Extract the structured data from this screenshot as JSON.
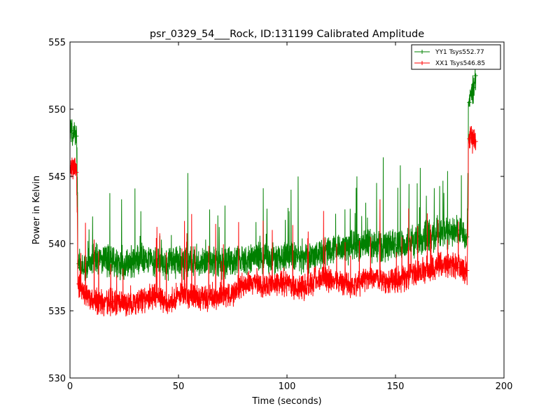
{
  "chart_data": {
    "type": "line",
    "title": "psr_0329_54___Rock, ID:131199 Calibrated Amplitude",
    "xlabel": "Time (seconds)",
    "ylabel": "Power in Kelvin",
    "xlim": [
      0,
      200
    ],
    "ylim": [
      530,
      555
    ],
    "x_ticks": [
      "0",
      "50",
      "100",
      "150",
      "200"
    ],
    "y_ticks": [
      "530",
      "535",
      "540",
      "545",
      "550",
      "555"
    ],
    "grid": false,
    "legend_position": "top-right",
    "marker": "plus",
    "series": [
      {
        "name": "YY1 Tsys552.77",
        "color": "#008000",
        "x": [
          0,
          1,
          2,
          3,
          4,
          5,
          8,
          10,
          15,
          20,
          25,
          30,
          35,
          40,
          45,
          50,
          55,
          60,
          65,
          70,
          75,
          80,
          85,
          90,
          95,
          100,
          105,
          110,
          115,
          120,
          125,
          130,
          135,
          140,
          145,
          150,
          155,
          160,
          165,
          170,
          175,
          180,
          183,
          184,
          185,
          186,
          187
        ],
        "y": [
          548.8,
          548.4,
          548.2,
          548.0,
          538.5,
          538.2,
          538.5,
          538.8,
          538.9,
          538.6,
          538.5,
          538.7,
          538.8,
          538.5,
          538.4,
          538.6,
          538.7,
          538.6,
          538.8,
          538.5,
          538.6,
          538.8,
          539.0,
          539.0,
          538.8,
          539.2,
          539.0,
          538.9,
          539.3,
          539.6,
          539.5,
          539.8,
          539.9,
          539.8,
          539.8,
          539.9,
          540.0,
          540.2,
          540.6,
          540.7,
          540.8,
          541.0,
          540.5,
          550.5,
          551.0,
          551.6,
          552.5
        ]
      },
      {
        "name": "XX1 Tsys546.85",
        "color": "#ff0000",
        "x": [
          0,
          1,
          2,
          3,
          4,
          5,
          8,
          10,
          15,
          20,
          25,
          30,
          35,
          40,
          45,
          50,
          55,
          60,
          65,
          70,
          75,
          80,
          85,
          90,
          95,
          100,
          105,
          110,
          115,
          120,
          125,
          130,
          135,
          140,
          145,
          150,
          155,
          160,
          165,
          170,
          175,
          180,
          183,
          184,
          185,
          186,
          187
        ],
        "y": [
          545.8,
          545.6,
          545.8,
          545.3,
          537.0,
          536.6,
          536.0,
          535.8,
          535.6,
          535.7,
          535.5,
          535.6,
          535.9,
          536.1,
          535.5,
          536.2,
          536.1,
          536.0,
          535.9,
          536.2,
          536.3,
          537.0,
          537.2,
          536.8,
          537.0,
          537.0,
          536.6,
          536.9,
          537.5,
          537.3,
          537.1,
          536.9,
          537.2,
          537.6,
          537.1,
          537.3,
          537.4,
          537.9,
          538.0,
          538.4,
          538.4,
          538.2,
          538.0,
          547.8,
          547.9,
          547.7,
          547.6
        ]
      }
    ]
  }
}
